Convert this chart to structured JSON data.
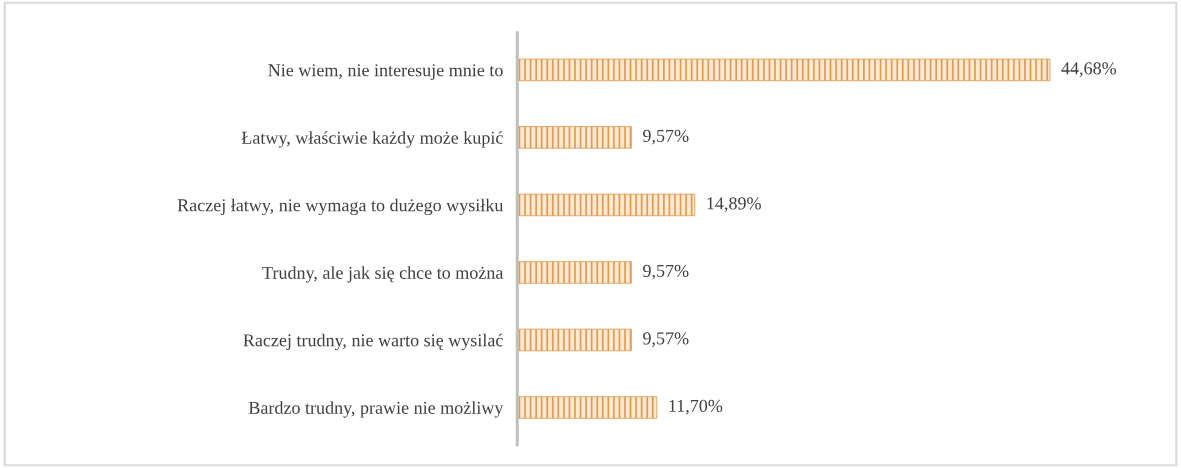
{
  "chart_data": {
    "type": "bar",
    "orientation": "horizontal",
    "categories": [
      "Nie wiem, nie interesuje mnie to",
      "Łatwy, właściwie każdy może kupić",
      "Raczej łatwy, nie wymaga to dużego wysiłku",
      "Trudny, ale jak się chce to można",
      "Raczej trudny, nie warto się wysilać",
      "Bardzo trudny, prawie nie możliwy"
    ],
    "values": [
      44.68,
      9.57,
      14.89,
      9.57,
      9.57,
      11.7
    ],
    "value_labels": [
      "44,68%",
      "9,57%",
      "14,89%",
      "9,57%",
      "9,57%",
      "11,70%"
    ],
    "color": "#e39a4f",
    "grid": false,
    "legend": false
  }
}
